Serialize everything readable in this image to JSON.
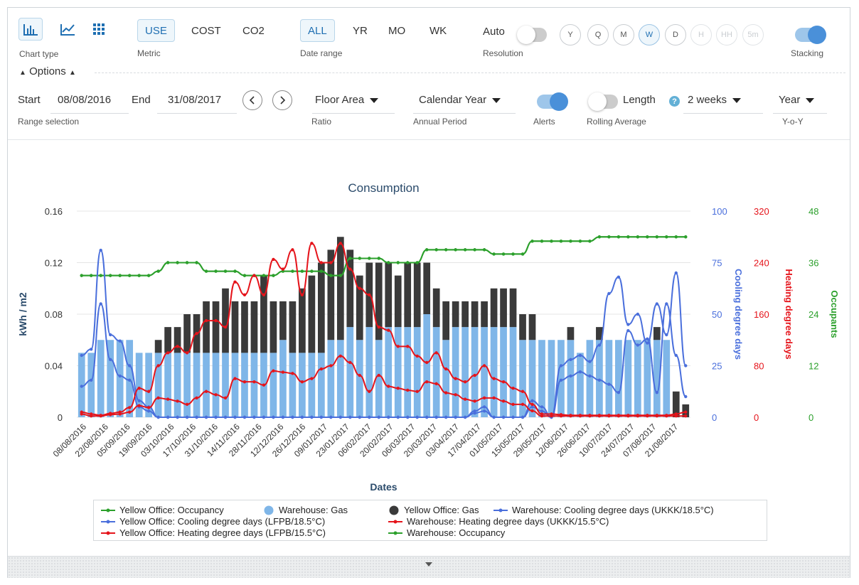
{
  "controls": {
    "chart_type_label": "Chart type",
    "metric": {
      "options": [
        "USE",
        "COST",
        "CO2"
      ],
      "selected": "USE",
      "label": "Metric"
    },
    "date_range": {
      "options": [
        "ALL",
        "YR",
        "MO",
        "WK"
      ],
      "selected": "ALL",
      "label": "Date range"
    },
    "resolution": {
      "auto_label": "Auto",
      "label": "Resolution",
      "options": [
        "Y",
        "Q",
        "M",
        "W",
        "D",
        "H",
        "HH",
        "5m"
      ],
      "selected": "W"
    },
    "stacking_label": "Stacking",
    "options_label": "Options",
    "start_label": "Start",
    "start_value": "08/08/2016",
    "end_label": "End",
    "end_value": "31/08/2017",
    "range_selection_label": "Range selection",
    "ratio": {
      "value": "Floor Area",
      "label": "Ratio"
    },
    "annual_period": {
      "value": "Calendar Year",
      "label": "Annual Period"
    },
    "alerts_label": "Alerts",
    "rolling": {
      "length_label": "Length",
      "value": "2 weeks",
      "label": "Rolling Average",
      "help": "?"
    },
    "yoy": {
      "value": "Year",
      "label": "Y-o-Y"
    }
  },
  "chart_data": {
    "type": "bar",
    "title": "Consumption",
    "xlabel": "Dates",
    "ylabel": "kWh / m2",
    "ylim": [
      0,
      0.16
    ],
    "yticks": [
      "0",
      "0.04",
      "0.08",
      "0.12",
      "0.16"
    ],
    "y2": {
      "label": "Cooling degree days",
      "ylim": [
        0,
        100
      ],
      "ticks": [
        "0",
        "25",
        "50",
        "75",
        "100"
      ],
      "color": "#4a6fdc"
    },
    "y3": {
      "label": "Heating degree days",
      "ylim": [
        0,
        320
      ],
      "ticks": [
        "0",
        "80",
        "160",
        "240",
        "320"
      ],
      "color": "#e5141b"
    },
    "y4": {
      "label": "Occupants",
      "ylim": [
        0,
        48
      ],
      "ticks": [
        "0",
        "12",
        "24",
        "36",
        "48"
      ],
      "color": "#2ca02c"
    },
    "xticks": [
      "08/08/2016",
      "22/08/2016",
      "05/09/2016",
      "19/09/2016",
      "03/10/2016",
      "17/10/2016",
      "31/10/2016",
      "14/11/2016",
      "28/11/2016",
      "12/12/2016",
      "26/12/2016",
      "09/01/2017",
      "23/01/2017",
      "06/02/2017",
      "20/02/2017",
      "06/03/2017",
      "20/03/2017",
      "03/04/2017",
      "17/04/2017",
      "01/05/2017",
      "15/05/2017",
      "29/05/2017",
      "12/06/2017",
      "26/06/2017",
      "10/07/2017",
      "24/07/2017",
      "07/08/2017",
      "21/08/2017"
    ],
    "grid": true,
    "legend_position": "bottom",
    "series": [
      {
        "name": "Warehouse: Gas",
        "kind": "bar",
        "axis": "y",
        "color": "#7fb6e8",
        "values": [
          0.05,
          0.05,
          0.06,
          0.06,
          0.06,
          0.06,
          0.05,
          0.05,
          0.05,
          0.05,
          0.05,
          0.05,
          0.05,
          0.05,
          0.05,
          0.05,
          0.05,
          0.05,
          0.05,
          0.05,
          0.05,
          0.06,
          0.05,
          0.05,
          0.05,
          0.05,
          0.06,
          0.06,
          0.07,
          0.06,
          0.07,
          0.06,
          0.07,
          0.07,
          0.07,
          0.07,
          0.08,
          0.07,
          0.06,
          0.07,
          0.07,
          0.07,
          0.07,
          0.07,
          0.07,
          0.07,
          0.06,
          0.06,
          0.06,
          0.06,
          0.06,
          0.06,
          0.05,
          0.06,
          0.06,
          0.06,
          0.06,
          0.06,
          0.06,
          0.06,
          0.06,
          0.06,
          0.0,
          0.0
        ]
      },
      {
        "name": "Yellow Office: Gas",
        "kind": "bar",
        "axis": "y",
        "color": "#3a3a3a",
        "values": [
          0,
          0,
          0,
          0,
          0,
          0,
          0,
          0,
          0.01,
          0.02,
          0.02,
          0.03,
          0.03,
          0.04,
          0.04,
          0.05,
          0.04,
          0.04,
          0.04,
          0.06,
          0.04,
          0.03,
          0.04,
          0.05,
          0.06,
          0.07,
          0.07,
          0.08,
          0.06,
          0.05,
          0.05,
          0.06,
          0.05,
          0.04,
          0.05,
          0.05,
          0.04,
          0.03,
          0.03,
          0.02,
          0.02,
          0.02,
          0.02,
          0.03,
          0.03,
          0.03,
          0.02,
          0.02,
          0,
          0,
          0,
          0.01,
          0,
          0,
          0.01,
          0,
          0,
          0,
          0,
          0,
          0.01,
          0,
          0.02,
          0.01
        ]
      },
      {
        "name": "Yellow Office: Occupancy",
        "kind": "line",
        "axis": "y4",
        "color": "#2ca02c",
        "values": [
          33,
          33,
          33,
          33,
          33,
          33,
          33,
          33,
          34,
          36,
          36,
          36,
          36,
          34,
          34,
          34,
          34,
          33,
          33,
          33,
          33,
          34,
          34,
          34,
          34,
          34,
          33,
          33,
          37,
          37,
          37,
          37,
          36,
          36,
          36,
          36,
          39,
          39,
          39,
          39,
          39,
          39,
          39,
          38,
          38,
          38,
          38,
          41,
          41,
          41,
          41,
          41,
          41,
          41,
          42,
          42,
          42,
          42,
          42,
          42,
          42,
          42,
          42,
          42
        ]
      },
      {
        "name": "Warehouse: Occupancy",
        "kind": "line",
        "axis": "y4",
        "color": "#2ca02c",
        "values": [
          33,
          33,
          33,
          33,
          33,
          33,
          33,
          33,
          34,
          36,
          36,
          36,
          36,
          34,
          34,
          34,
          34,
          33,
          33,
          33,
          33,
          34,
          34,
          34,
          34,
          34,
          33,
          33,
          37,
          37,
          37,
          37,
          36,
          36,
          36,
          36,
          39,
          39,
          39,
          39,
          39,
          39,
          39,
          38,
          38,
          38,
          38,
          41,
          41,
          41,
          41,
          41,
          41,
          41,
          42,
          42,
          42,
          42,
          42,
          42,
          42,
          42,
          42,
          42
        ]
      },
      {
        "name": "Yellow Office: Cooling degree days (LFPB/18.5°C)",
        "kind": "line",
        "axis": "y2",
        "color": "#4a6fdc",
        "values": [
          15,
          18,
          55,
          28,
          20,
          18,
          5,
          3,
          0,
          0,
          0,
          0,
          0,
          0,
          0,
          0,
          0,
          0,
          0,
          0,
          0,
          0,
          0,
          0,
          0,
          0,
          0,
          0,
          0,
          0,
          0,
          0,
          0,
          0,
          0,
          0,
          0,
          0,
          0,
          0,
          0,
          2,
          3,
          0,
          0,
          0,
          0,
          5,
          3,
          0,
          18,
          20,
          22,
          20,
          18,
          16,
          12,
          42,
          35,
          38,
          12,
          55,
          30,
          10
        ]
      },
      {
        "name": "Warehouse: Cooling degree days (UKKK/18.5°C)",
        "kind": "line",
        "axis": "y2",
        "color": "#4a6fdc",
        "values": [
          30,
          33,
          81,
          40,
          37,
          25,
          8,
          5,
          0,
          0,
          0,
          0,
          0,
          0,
          0,
          0,
          0,
          0,
          0,
          0,
          0,
          0,
          0,
          0,
          0,
          0,
          0,
          0,
          0,
          0,
          0,
          0,
          0,
          0,
          0,
          0,
          0,
          0,
          0,
          0,
          0,
          3,
          5,
          0,
          0,
          0,
          0,
          8,
          5,
          0,
          25,
          28,
          30,
          27,
          35,
          60,
          68,
          45,
          50,
          36,
          55,
          40,
          70,
          25
        ]
      },
      {
        "name": "Yellow Office: Heating degree days (LFPB/15.5°C)",
        "kind": "line",
        "axis": "y3",
        "color": "#e5141b",
        "values": [
          5,
          2,
          2,
          4,
          5,
          8,
          18,
          15,
          30,
          28,
          25,
          20,
          30,
          40,
          35,
          30,
          60,
          55,
          55,
          50,
          72,
          70,
          68,
          55,
          60,
          75,
          80,
          95,
          85,
          65,
          40,
          65,
          48,
          45,
          42,
          40,
          55,
          52,
          38,
          35,
          28,
          25,
          30,
          30,
          25,
          20,
          20,
          10,
          2,
          2,
          2,
          2,
          2,
          2,
          2,
          2,
          2,
          2,
          2,
          2,
          2,
          2,
          2,
          2
        ]
      },
      {
        "name": "Warehouse: Heating degree days (UKKK/15.5°C)",
        "kind": "line",
        "axis": "y3",
        "color": "#e5141b",
        "values": [
          8,
          5,
          3,
          6,
          8,
          15,
          45,
          40,
          80,
          100,
          110,
          100,
          130,
          150,
          150,
          140,
          210,
          190,
          220,
          190,
          245,
          230,
          260,
          190,
          270,
          240,
          240,
          270,
          230,
          200,
          190,
          140,
          135,
          110,
          110,
          95,
          85,
          100,
          75,
          60,
          55,
          65,
          80,
          60,
          55,
          45,
          40,
          20,
          5,
          5,
          4,
          3,
          3,
          3,
          3,
          3,
          3,
          3,
          3,
          3,
          3,
          3,
          5,
          8
        ]
      }
    ]
  }
}
